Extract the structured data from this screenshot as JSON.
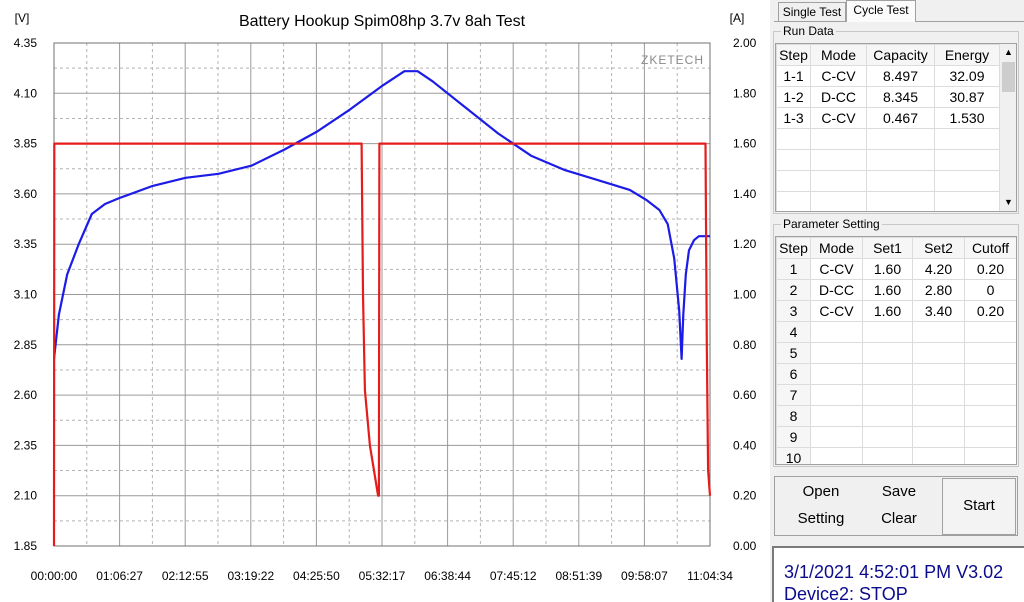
{
  "chart_data": {
    "type": "line",
    "title": "Battery Hookup Spim08hp 3.7v 8ah Test",
    "watermark": "ZKETECH",
    "left_axis_unit": "[V]",
    "right_axis_unit": "[A]",
    "left_ticks": [
      "4.35",
      "4.10",
      "3.85",
      "3.60",
      "3.35",
      "3.10",
      "2.85",
      "2.60",
      "2.35",
      "2.10",
      "1.85"
    ],
    "right_ticks": [
      "2.00",
      "1.80",
      "1.60",
      "1.40",
      "1.20",
      "1.00",
      "0.80",
      "0.60",
      "0.40",
      "0.20",
      "0.00"
    ],
    "x_ticks": [
      "00:00:00",
      "01:06:27",
      "02:12:55",
      "03:19:22",
      "04:25:50",
      "05:32:17",
      "06:38:44",
      "07:45:12",
      "08:51:39",
      "09:58:07",
      "11:04:34"
    ],
    "ylim_left": [
      1.85,
      4.35
    ],
    "ylim_right": [
      0.0,
      2.0
    ],
    "xlim_seconds": [
      0,
      39874
    ],
    "grid": true,
    "series": [
      {
        "axis": "left",
        "color": "#1c1ce6",
        "points": [
          [
            0,
            2.78
          ],
          [
            300,
            3.0
          ],
          [
            800,
            3.2
          ],
          [
            1500,
            3.35
          ],
          [
            2300,
            3.5
          ],
          [
            3100,
            3.55
          ],
          [
            4000,
            3.58
          ],
          [
            6000,
            3.64
          ],
          [
            8000,
            3.68
          ],
          [
            10000,
            3.7
          ],
          [
            12000,
            3.74
          ],
          [
            14000,
            3.82
          ],
          [
            16000,
            3.91
          ],
          [
            18000,
            4.02
          ],
          [
            20000,
            4.14
          ],
          [
            21300,
            4.21
          ],
          [
            22100,
            4.21
          ],
          [
            23000,
            4.16
          ],
          [
            25000,
            4.03
          ],
          [
            27000,
            3.9
          ],
          [
            29000,
            3.79
          ],
          [
            31000,
            3.72
          ],
          [
            33000,
            3.67
          ],
          [
            35000,
            3.62
          ],
          [
            36000,
            3.57
          ],
          [
            36800,
            3.52
          ],
          [
            37300,
            3.45
          ],
          [
            37700,
            3.28
          ],
          [
            38000,
            3.02
          ],
          [
            38150,
            2.78
          ],
          [
            38250,
            3.0
          ],
          [
            38400,
            3.2
          ],
          [
            38600,
            3.32
          ],
          [
            38900,
            3.37
          ],
          [
            39200,
            3.39
          ],
          [
            39874,
            3.39
          ]
        ]
      },
      {
        "axis": "right",
        "color": "#e61c1c",
        "points": [
          [
            0,
            0.0
          ],
          [
            20,
            1.6
          ],
          [
            18700,
            1.6
          ],
          [
            18780,
            1.0
          ],
          [
            18900,
            0.62
          ],
          [
            19200,
            0.4
          ],
          [
            19700,
            0.2
          ],
          [
            19750,
            0.2
          ],
          [
            19780,
            1.6
          ],
          [
            39600,
            1.6
          ],
          [
            39680,
            0.8
          ],
          [
            39760,
            0.3
          ],
          [
            39874,
            0.2
          ]
        ]
      }
    ]
  },
  "tabs": {
    "single": "Single Test",
    "cycle": "Cycle Test"
  },
  "run_data": {
    "legend": "Run Data",
    "headers": [
      "Step",
      "Mode",
      "Capacity",
      "Energy"
    ],
    "rows": [
      [
        "1-1",
        "C-CV",
        "8.497",
        "32.09"
      ],
      [
        "1-2",
        "D-CC",
        "8.345",
        "30.87"
      ],
      [
        "1-3",
        "C-CV",
        "0.467",
        "1.530"
      ]
    ]
  },
  "params": {
    "legend": "Parameter Setting",
    "headers": [
      "Step",
      "Mode",
      "Set1",
      "Set2",
      "Cutoff"
    ],
    "rows": [
      [
        "1",
        "C-CV",
        "1.60",
        "4.20",
        "0.20"
      ],
      [
        "2",
        "D-CC",
        "1.60",
        "2.80",
        "0"
      ],
      [
        "3",
        "C-CV",
        "1.60",
        "3.40",
        "0.20"
      ],
      [
        "4",
        "",
        "",
        "",
        ""
      ],
      [
        "5",
        "",
        "",
        "",
        ""
      ],
      [
        "6",
        "",
        "",
        "",
        ""
      ],
      [
        "7",
        "",
        "",
        "",
        ""
      ],
      [
        "8",
        "",
        "",
        "",
        ""
      ],
      [
        "9",
        "",
        "",
        "",
        ""
      ],
      [
        "10",
        "",
        "",
        "",
        ""
      ]
    ]
  },
  "buttons": {
    "open": "Open",
    "save": "Save",
    "setting": "Setting",
    "clear": "Clear",
    "start": "Start"
  },
  "status": {
    "line1": "3/1/2021  4:52:01 PM  V3.02",
    "line2": "Device2: STOP"
  }
}
